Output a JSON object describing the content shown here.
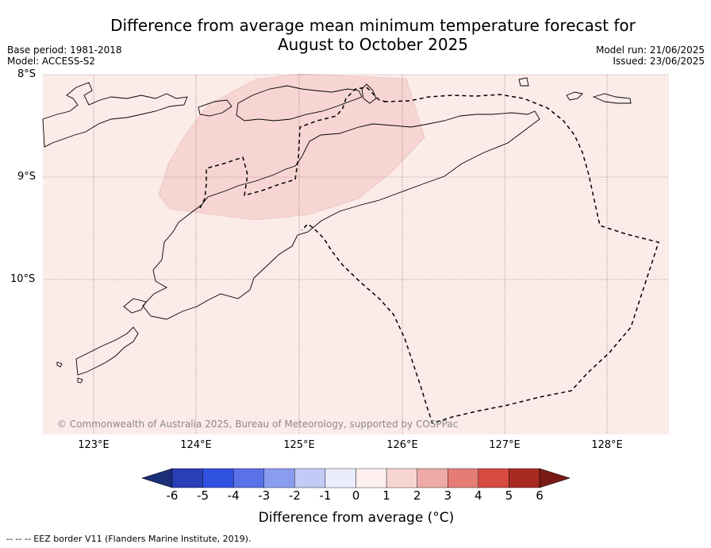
{
  "title_line1": "Difference from average mean minimum temperature forecast for",
  "title_line2": "August to October 2025",
  "base_period": "Base period: 1981-2018",
  "model": "Model: ACCESS-S2",
  "model_run": "Model run: 21/06/2025",
  "issued": "Issued: 23/06/2025",
  "lat_labels": [
    "8°S",
    "9°S",
    "10°S"
  ],
  "lon_labels": [
    "123°E",
    "124°E",
    "125°E",
    "126°E",
    "127°E",
    "128°E"
  ],
  "copyright": "© Commonwealth of Australia 2025, Bureau of Meteorology, supported by COSPPac",
  "colorbar": {
    "labels": [
      "-6",
      "-5",
      "-4",
      "-3",
      "-2",
      "-1",
      "0",
      "1",
      "2",
      "3",
      "4",
      "5",
      "6"
    ],
    "title": "Difference from average (°C)",
    "colors": [
      "#1b2e7a",
      "#2a3fb5",
      "#3050e0",
      "#5a72e8",
      "#8a9cee",
      "#c2caf5",
      "#eaedfb",
      "#fdf0ef",
      "#f7d5d3",
      "#eeaaa6",
      "#e57d76",
      "#d64a40",
      "#a82a22",
      "#7a1a16"
    ]
  },
  "map": {
    "background_color": "#fbebe9",
    "anomaly_patch_color": "#f6d5d2"
  },
  "footnote": "--  --  -- EEZ border V11 (Flanders Marine Institute, 2019)."
}
